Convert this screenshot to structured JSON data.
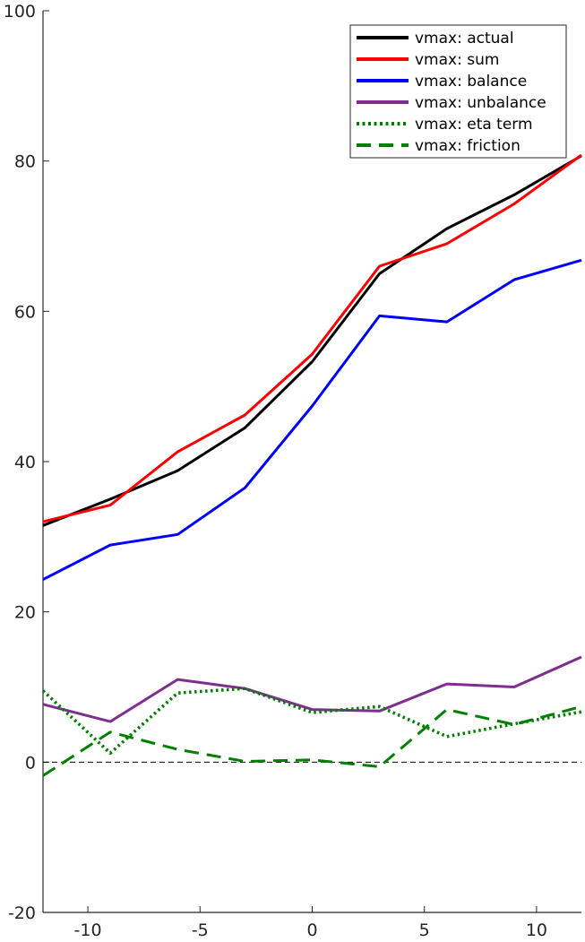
{
  "chart_data": {
    "type": "line",
    "title": "",
    "xlabel": "",
    "ylabel": "",
    "xlim": [
      -12,
      12
    ],
    "ylim": [
      -20,
      100
    ],
    "xticks": [
      -10,
      -5,
      0,
      5,
      10
    ],
    "yticks": [
      -20,
      0,
      20,
      40,
      60,
      80,
      100
    ],
    "grid": false,
    "legend_position": "top-right",
    "x": [
      -12,
      -9,
      -6,
      -3,
      0,
      3,
      6,
      9,
      12
    ],
    "zero_line": {
      "y": 0,
      "style": "dashed",
      "color": "#000000"
    },
    "series": [
      {
        "name": "vmax: actual",
        "color": "#000000",
        "style": "solid",
        "values": [
          31.5,
          35.0,
          38.8,
          44.5,
          53.3,
          65.0,
          71.0,
          75.5,
          80.7
        ]
      },
      {
        "name": "vmax: sum",
        "color": "#ff0000",
        "style": "solid",
        "values": [
          32.0,
          34.2,
          41.3,
          46.2,
          54.3,
          66.0,
          69.0,
          74.3,
          80.8
        ]
      },
      {
        "name": "vmax: balance",
        "color": "#0000ff",
        "style": "solid",
        "values": [
          24.3,
          28.9,
          30.3,
          36.5,
          47.4,
          59.4,
          58.6,
          64.2,
          66.8
        ]
      },
      {
        "name": "vmax: unbalance",
        "color": "#7e2f8e",
        "style": "solid",
        "values": [
          7.7,
          5.4,
          11.0,
          9.8,
          7.0,
          6.8,
          10.4,
          10.0,
          14.0
        ]
      },
      {
        "name": "vmax: eta term",
        "color": "#008000",
        "style": "dotted",
        "values": [
          9.5,
          1.2,
          9.2,
          9.8,
          6.6,
          7.4,
          3.4,
          5.1,
          6.7
        ]
      },
      {
        "name": "vmax: friction",
        "color": "#008000",
        "style": "dashed",
        "values": [
          -1.8,
          4.0,
          1.7,
          0.1,
          0.3,
          -0.6,
          7.0,
          5.0,
          7.4
        ]
      }
    ]
  }
}
